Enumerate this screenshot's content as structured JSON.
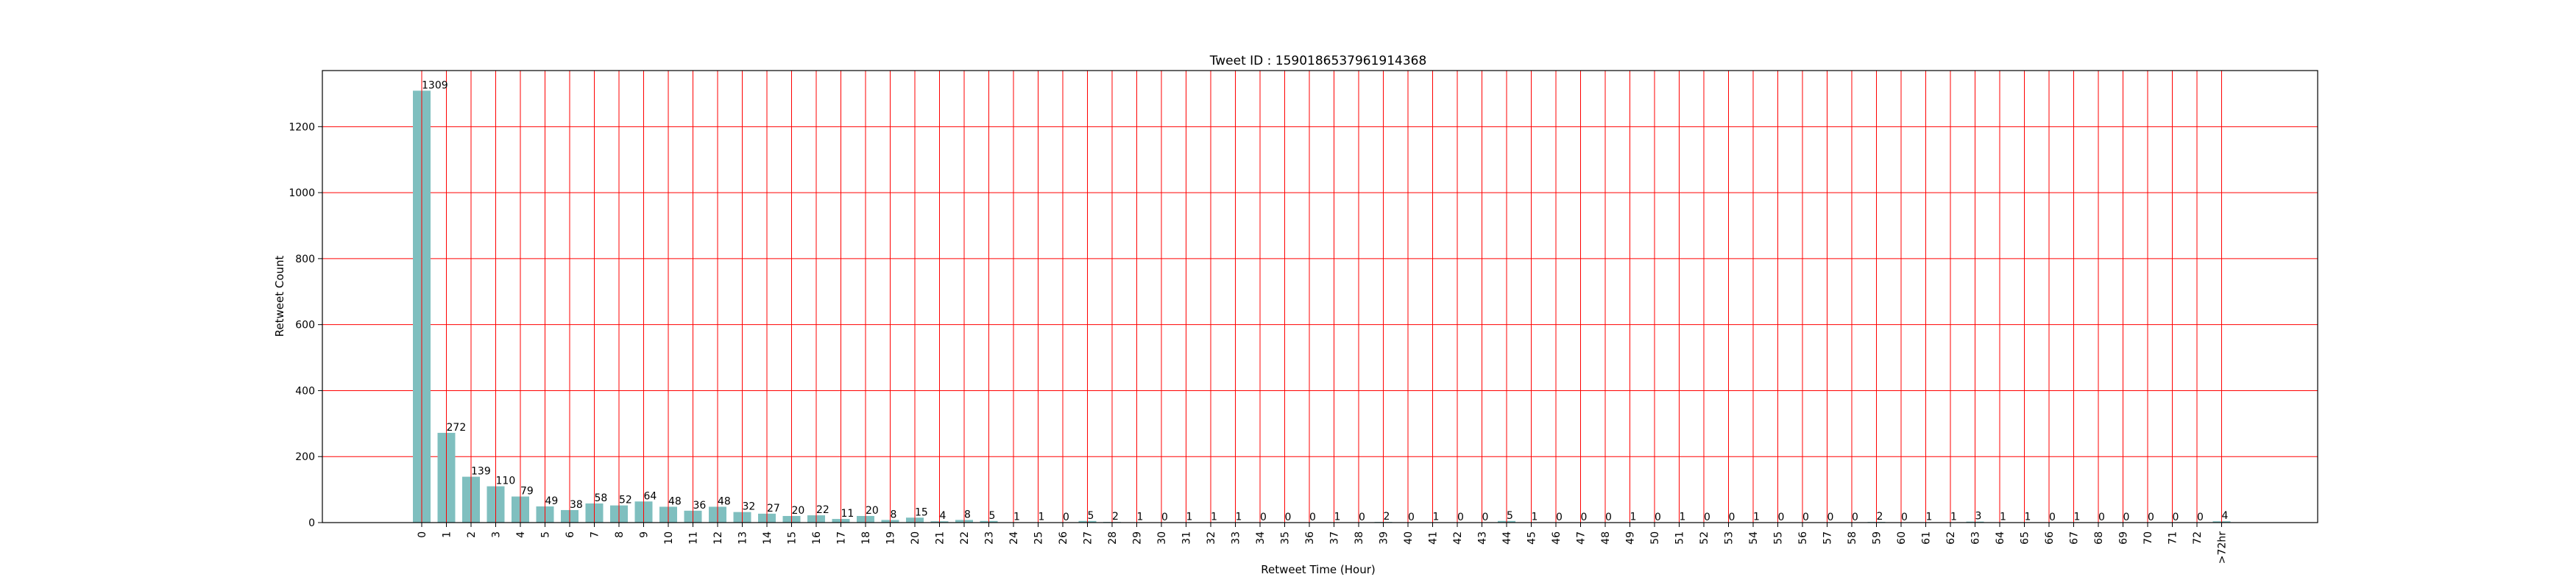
{
  "chart_data": {
    "type": "bar",
    "title": "Tweet ID : 1590186537961914368",
    "xlabel": "Retweet Time (Hour)",
    "ylabel": "Retweet Count",
    "ylim": [
      0,
      1370
    ],
    "yticks": [
      0,
      200,
      400,
      600,
      800,
      1000,
      1200
    ],
    "grid": true,
    "bar_color": "#7fbfbf",
    "grid_color": "#ff0000",
    "categories": [
      "0",
      "1",
      "2",
      "3",
      "4",
      "5",
      "6",
      "7",
      "8",
      "9",
      "10",
      "11",
      "12",
      "13",
      "14",
      "15",
      "16",
      "17",
      "18",
      "19",
      "20",
      "21",
      "22",
      "23",
      "24",
      "25",
      "26",
      "27",
      "28",
      "29",
      "30",
      "31",
      "32",
      "33",
      "34",
      "35",
      "36",
      "37",
      "38",
      "39",
      "40",
      "41",
      "42",
      "43",
      "44",
      "45",
      "46",
      "47",
      "48",
      "49",
      "50",
      "51",
      "52",
      "53",
      "54",
      "55",
      "56",
      "57",
      "58",
      "59",
      "60",
      "61",
      "62",
      "63",
      "64",
      "65",
      "66",
      "67",
      "68",
      "69",
      "70",
      "71",
      "72",
      ">72hr"
    ],
    "values": [
      1309,
      272,
      139,
      110,
      79,
      49,
      38,
      58,
      52,
      64,
      48,
      36,
      48,
      32,
      27,
      20,
      22,
      11,
      20,
      8,
      15,
      4,
      8,
      5,
      1,
      1,
      0,
      5,
      2,
      1,
      0,
      1,
      1,
      1,
      0,
      0,
      0,
      1,
      0,
      2,
      0,
      1,
      0,
      0,
      5,
      1,
      0,
      0,
      0,
      1,
      0,
      1,
      0,
      0,
      1,
      0,
      0,
      0,
      0,
      2,
      0,
      1,
      1,
      3,
      1,
      1,
      0,
      1,
      0,
      0,
      0,
      0,
      0,
      4
    ]
  }
}
